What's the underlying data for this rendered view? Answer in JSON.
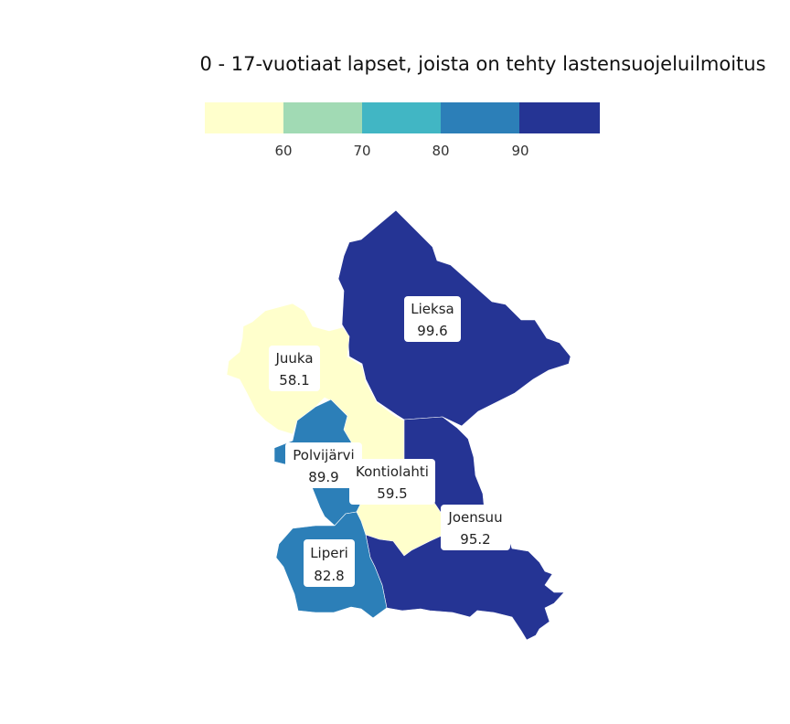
{
  "title": "0 - 17-vuotiaat lapset, joista on tehty lastensuojeluilmoitus",
  "legend": {
    "colors": [
      "#ffffcc",
      "#a1dab4",
      "#41b6c4",
      "#2c7fb8",
      "#253494"
    ],
    "ticks": [
      "60",
      "70",
      "80",
      "90"
    ]
  },
  "regions": [
    {
      "name": "Lieksa",
      "value": "99.6",
      "color": "#253494"
    },
    {
      "name": "Juuka",
      "value": "58.1",
      "color": "#ffffcc"
    },
    {
      "name": "Polvijärvi",
      "value": "89.9",
      "color": "#2c7fb8"
    },
    {
      "name": "Kontiolahti",
      "value": "59.5",
      "color": "#ffffcc"
    },
    {
      "name": "Joensuu",
      "value": "95.2",
      "color": "#253494"
    },
    {
      "name": "Liperi",
      "value": "82.8",
      "color": "#2c7fb8"
    }
  ]
}
